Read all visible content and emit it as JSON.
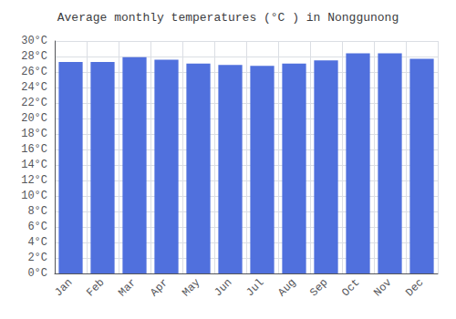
{
  "chart_data": {
    "type": "bar",
    "title": "Average monthly temperatures (°C ) in Nonggunong",
    "categories": [
      "Jan",
      "Feb",
      "Mar",
      "Apr",
      "May",
      "Jun",
      "Jul",
      "Aug",
      "Sep",
      "Oct",
      "Nov",
      "Dec"
    ],
    "values": [
      27.3,
      27.3,
      27.9,
      27.6,
      27.1,
      26.9,
      26.8,
      27.1,
      27.5,
      28.4,
      28.4,
      27.7
    ],
    "ylim": [
      0,
      30
    ],
    "yticks": [
      {
        "value": 0,
        "label": "0°C"
      },
      {
        "value": 2,
        "label": "2°C"
      },
      {
        "value": 4,
        "label": "4°C"
      },
      {
        "value": 6,
        "label": "6°C"
      },
      {
        "value": 8,
        "label": "8°C"
      },
      {
        "value": 10,
        "label": "10°C"
      },
      {
        "value": 12,
        "label": "12°C"
      },
      {
        "value": 14,
        "label": "14°C"
      },
      {
        "value": 16,
        "label": "16°C"
      },
      {
        "value": 18,
        "label": "18°C"
      },
      {
        "value": 20,
        "label": "20°C"
      },
      {
        "value": 22,
        "label": "22°C"
      },
      {
        "value": 24,
        "label": "24°C"
      },
      {
        "value": 26,
        "label": "26°C"
      },
      {
        "value": 28,
        "label": "28°C"
      },
      {
        "value": 30,
        "label": "30°C"
      }
    ],
    "grid": true
  }
}
